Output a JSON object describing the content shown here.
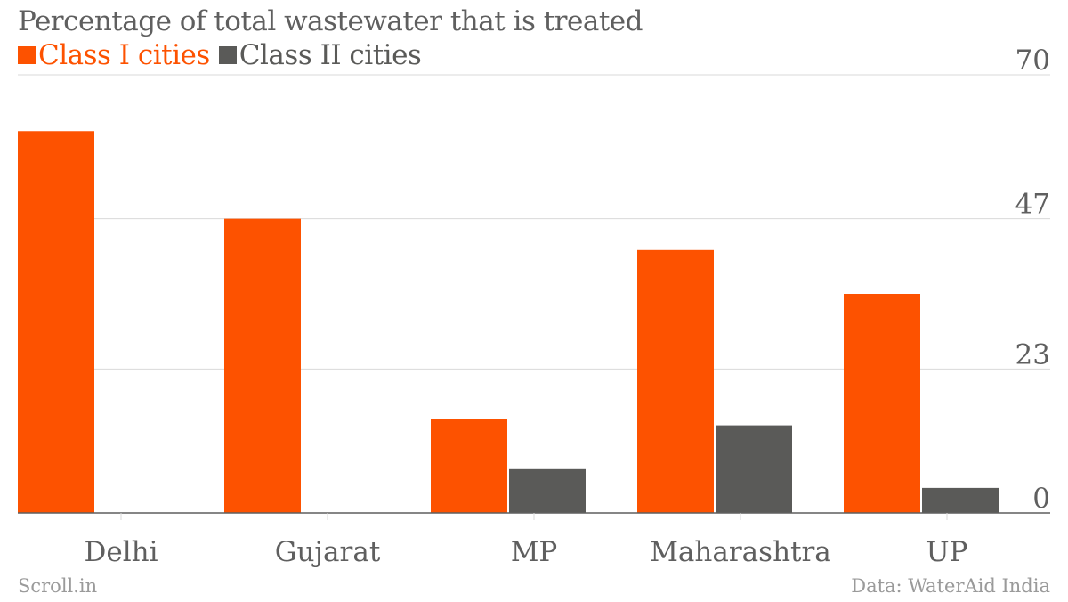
{
  "colors": {
    "class1": "#fd5200",
    "class2": "#5a5a58",
    "grid": "#d9d9d9",
    "axis": "#5f5f5f",
    "text": "#5f5f5f"
  },
  "footer": {
    "source_left": "Scroll.in",
    "source_right": "Data: WaterAid India"
  },
  "chart_data": {
    "type": "bar",
    "title": "Percentage of total wastewater that is treated",
    "categories": [
      "Delhi",
      "Gujarat",
      "MP",
      "Maharashtra",
      "UP"
    ],
    "series": [
      {
        "name": "Class I cities",
        "values": [
          61,
          47,
          15,
          42,
          35
        ]
      },
      {
        "name": "Class II cities",
        "values": [
          null,
          null,
          7,
          14,
          4
        ]
      }
    ],
    "yticks": [
      0,
      23,
      47,
      70
    ],
    "ylim": [
      0,
      70
    ],
    "grid": true,
    "legend": "top-left",
    "y_axis_side": "right"
  }
}
